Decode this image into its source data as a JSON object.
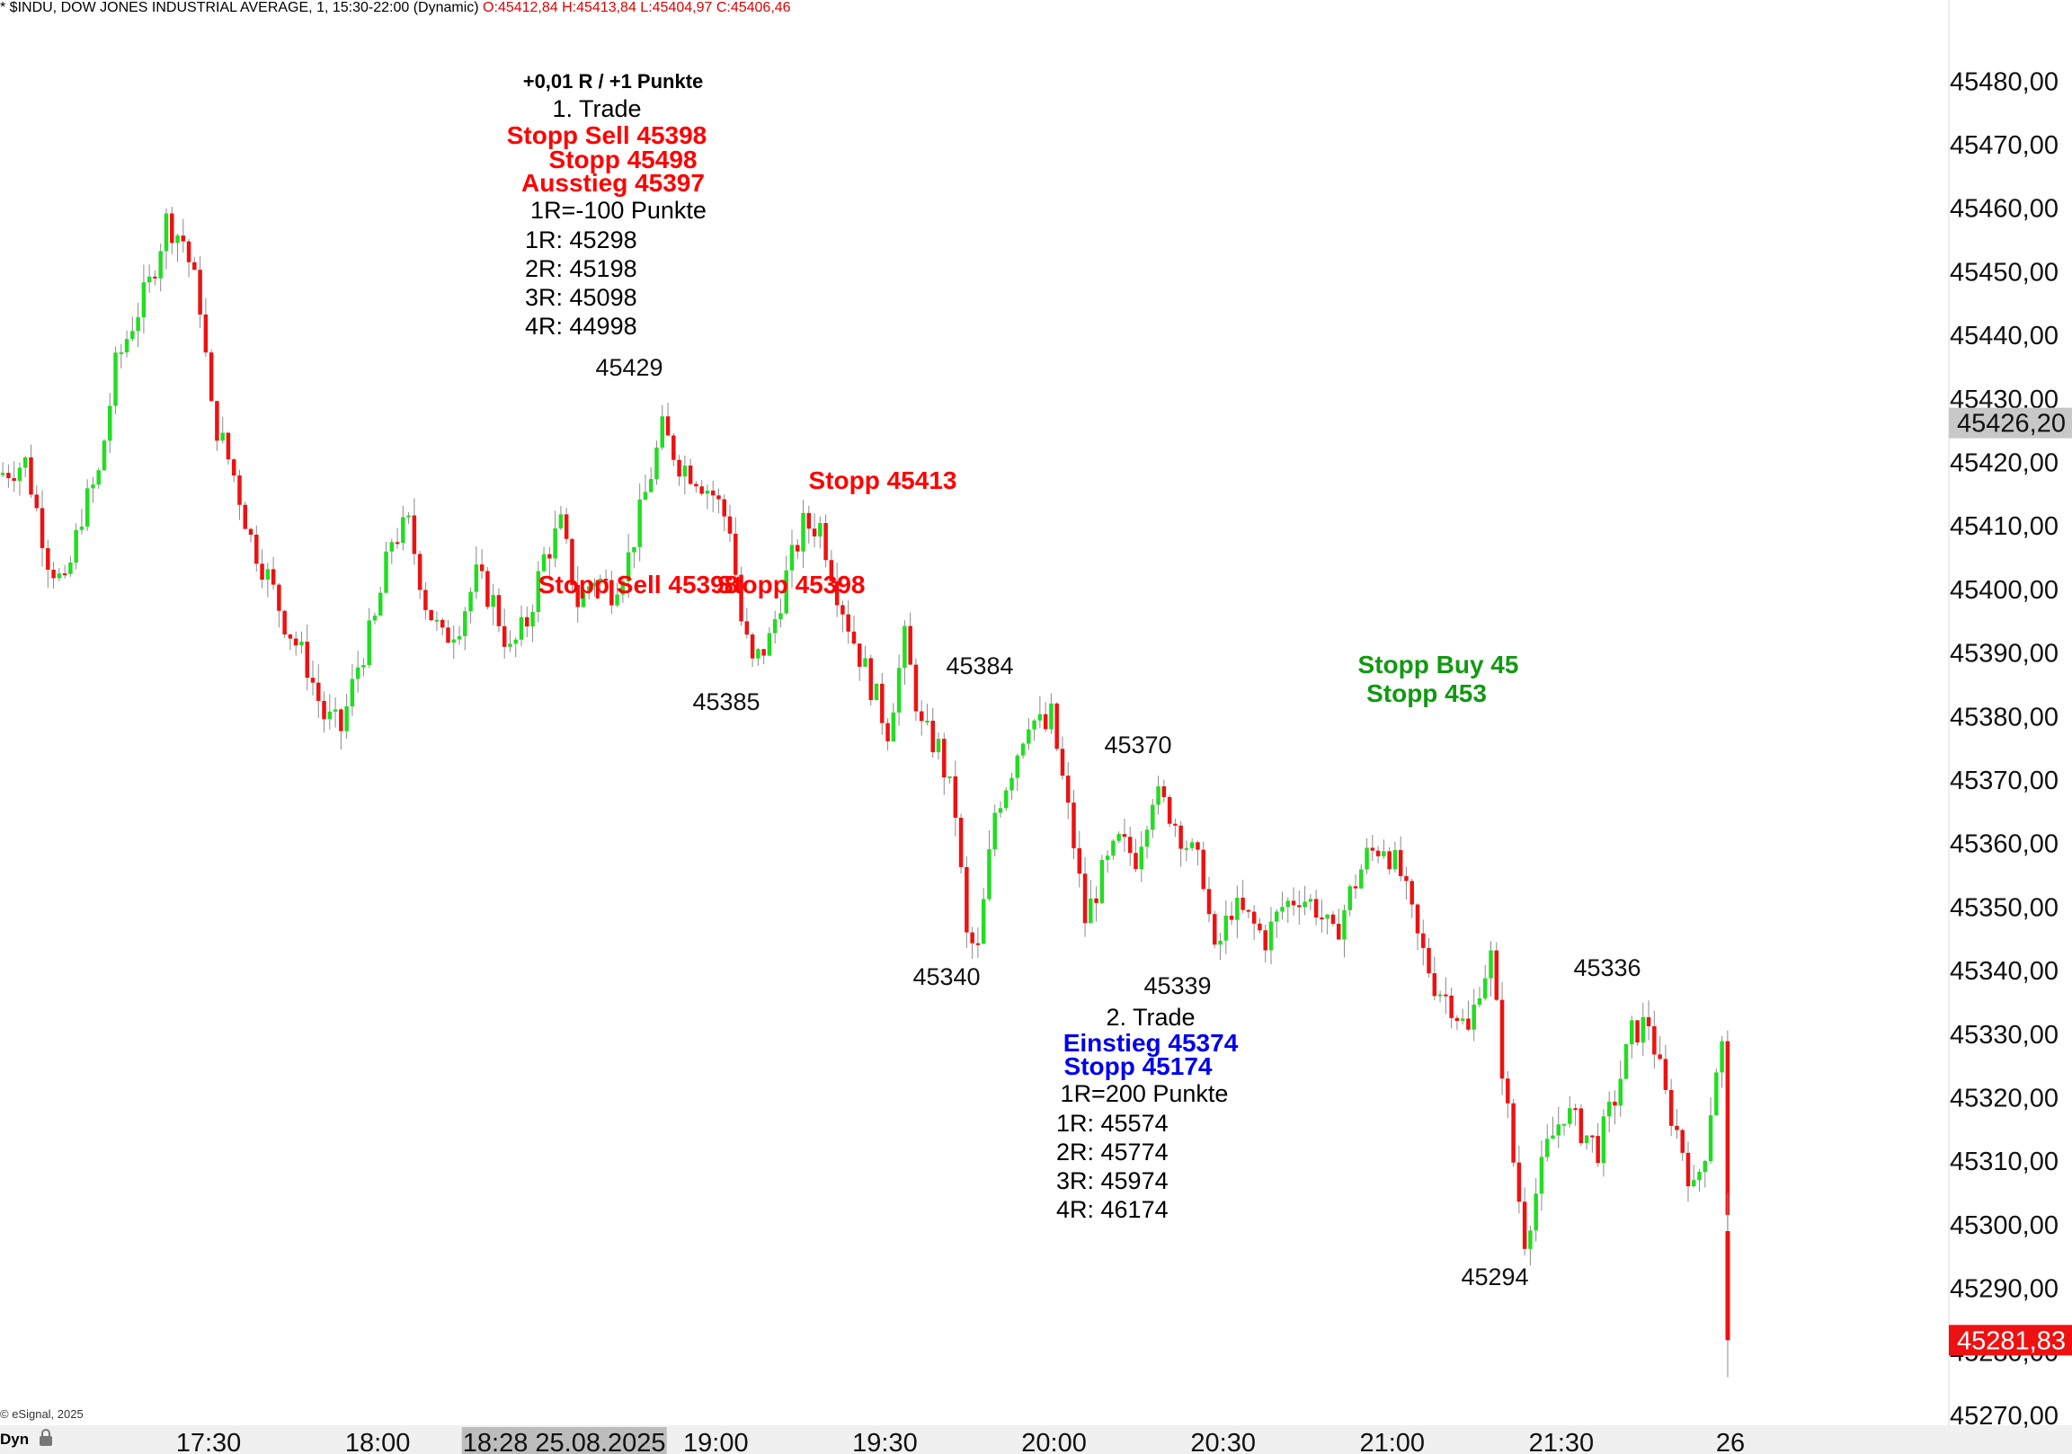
{
  "header": {
    "symbol_text": "* $INDU, DOW JONES INDUSTRIAL AVERAGE, 1, 15:30-22:00 (Dynamic)",
    "ohlc_text": "O:45412,84 H:45413,84 L:45404,97 C:45406,46"
  },
  "footer": {
    "copyright": "© eSignal, 2025",
    "mode": "Dyn",
    "lock_icon": "lock-icon"
  },
  "colors": {
    "up": "#22dd22",
    "down": "#ee1111",
    "wick": "#8a8a8a",
    "red_text": "#ff0000",
    "blue_text": "#0000ee",
    "green_text": "#119911",
    "price_box_gray": "#c8c8c8",
    "price_box_red": "#ee1111"
  },
  "chart_data": {
    "type": "candlestick",
    "title": "",
    "ylim": [
      45270,
      45485
    ],
    "y_ticks": [
      "45270,00",
      "45280,00",
      "45290,00",
      "45300,00",
      "45310,00",
      "45320,00",
      "45330,00",
      "45340,00",
      "45350,00",
      "45360,00",
      "45370,00",
      "45380,00",
      "45390,00",
      "45400,00",
      "45410,00",
      "45420,00",
      "45430,00",
      "45440,00",
      "45450,00",
      "45460,00",
      "45470,00",
      "45480,00"
    ],
    "x_ticks": [
      {
        "label": "17:30",
        "time": "17:30"
      },
      {
        "label": "18:00",
        "time": "18:00"
      },
      {
        "label": "18:28 25.08.2025",
        "time": "18:28",
        "highlight": true
      },
      {
        "label": "19:00",
        "time": "19:00"
      },
      {
        "label": "19:30",
        "time": "19:30"
      },
      {
        "label": "20:00",
        "time": "20:00"
      },
      {
        "label": "20:30",
        "time": "20:30"
      },
      {
        "label": "21:00",
        "time": "21:00"
      },
      {
        "label": "21:30",
        "time": "21:30"
      },
      {
        "label": "26",
        "time": "22:00"
      }
    ],
    "x_start": "16:53",
    "x_end": "22:00",
    "price_markers": [
      {
        "label": "45426,20",
        "value": 45426.2,
        "style": "gray"
      },
      {
        "label": "45281,83",
        "value": 45281.83,
        "style": "red"
      }
    ],
    "path_points": [
      {
        "t": "16:53",
        "p": 45418
      },
      {
        "t": "16:58",
        "p": 45420
      },
      {
        "t": "17:02",
        "p": 45405
      },
      {
        "t": "17:05",
        "p": 45400
      },
      {
        "t": "17:08",
        "p": 45412
      },
      {
        "t": "17:11",
        "p": 45418
      },
      {
        "t": "17:14",
        "p": 45435
      },
      {
        "t": "17:17",
        "p": 45442
      },
      {
        "t": "17:20",
        "p": 45448
      },
      {
        "t": "17:23",
        "p": 45458
      },
      {
        "t": "17:26",
        "p": 45455
      },
      {
        "t": "17:29",
        "p": 45445
      },
      {
        "t": "17:31",
        "p": 45428
      },
      {
        "t": "17:35",
        "p": 45418
      },
      {
        "t": "17:38",
        "p": 45408
      },
      {
        "t": "17:41",
        "p": 45402
      },
      {
        "t": "17:44",
        "p": 45395
      },
      {
        "t": "17:48",
        "p": 45388
      },
      {
        "t": "17:51",
        "p": 45380
      },
      {
        "t": "17:54",
        "p": 45378
      },
      {
        "t": "17:57",
        "p": 45388
      },
      {
        "t": "18:00",
        "p": 45395
      },
      {
        "t": "18:03",
        "p": 45408
      },
      {
        "t": "18:06",
        "p": 45410
      },
      {
        "t": "18:09",
        "p": 45398
      },
      {
        "t": "18:12",
        "p": 45392
      },
      {
        "t": "18:15",
        "p": 45395
      },
      {
        "t": "18:18",
        "p": 45402
      },
      {
        "t": "18:21",
        "p": 45398
      },
      {
        "t": "18:24",
        "p": 45390
      },
      {
        "t": "18:27",
        "p": 45395
      },
      {
        "t": "18:30",
        "p": 45405
      },
      {
        "t": "18:33",
        "p": 45410
      },
      {
        "t": "18:36",
        "p": 45398
      },
      {
        "t": "18:39",
        "p": 45402
      },
      {
        "t": "18:42",
        "p": 45400
      },
      {
        "t": "18:45",
        "p": 45405
      },
      {
        "t": "18:48",
        "p": 45415
      },
      {
        "t": "18:51",
        "p": 45425
      },
      {
        "t": "18:54",
        "p": 45420
      },
      {
        "t": "18:57",
        "p": 45418
      },
      {
        "t": "19:00",
        "p": 45415
      },
      {
        "t": "19:03",
        "p": 45410
      },
      {
        "t": "19:05",
        "p": 45395
      },
      {
        "t": "19:07",
        "p": 45388
      },
      {
        "t": "19:10",
        "p": 45392
      },
      {
        "t": "19:13",
        "p": 45402
      },
      {
        "t": "19:16",
        "p": 45410
      },
      {
        "t": "19:19",
        "p": 45410
      },
      {
        "t": "19:22",
        "p": 45400
      },
      {
        "t": "19:25",
        "p": 45392
      },
      {
        "t": "19:28",
        "p": 45385
      },
      {
        "t": "19:31",
        "p": 45378
      },
      {
        "t": "19:34",
        "p": 45392
      },
      {
        "t": "19:37",
        "p": 45378
      },
      {
        "t": "19:40",
        "p": 45375
      },
      {
        "t": "19:43",
        "p": 45365
      },
      {
        "t": "19:45",
        "p": 45345
      },
      {
        "t": "19:47",
        "p": 45343
      },
      {
        "t": "19:50",
        "p": 45365
      },
      {
        "t": "19:53",
        "p": 45372
      },
      {
        "t": "19:56",
        "p": 45380
      },
      {
        "t": "19:59",
        "p": 45378
      },
      {
        "t": "20:00",
        "p": 45380
      },
      {
        "t": "20:02",
        "p": 45370
      },
      {
        "t": "20:04",
        "p": 45360
      },
      {
        "t": "20:06",
        "p": 45348
      },
      {
        "t": "20:09",
        "p": 45355
      },
      {
        "t": "20:12",
        "p": 45360
      },
      {
        "t": "20:15",
        "p": 45358
      },
      {
        "t": "20:18",
        "p": 45368
      },
      {
        "t": "20:21",
        "p": 45365
      },
      {
        "t": "20:24",
        "p": 45360
      },
      {
        "t": "20:27",
        "p": 45355
      },
      {
        "t": "20:29",
        "p": 45342
      },
      {
        "t": "20:32",
        "p": 45350
      },
      {
        "t": "20:35",
        "p": 45348
      },
      {
        "t": "20:38",
        "p": 45345
      },
      {
        "t": "20:41",
        "p": 45350
      },
      {
        "t": "20:44",
        "p": 45352
      },
      {
        "t": "20:47",
        "p": 45350
      },
      {
        "t": "20:50",
        "p": 45345
      },
      {
        "t": "20:53",
        "p": 45352
      },
      {
        "t": "20:56",
        "p": 45358
      },
      {
        "t": "20:59",
        "p": 45360
      },
      {
        "t": "21:02",
        "p": 45355
      },
      {
        "t": "21:05",
        "p": 45345
      },
      {
        "t": "21:08",
        "p": 45338
      },
      {
        "t": "21:11",
        "p": 45335
      },
      {
        "t": "21:14",
        "p": 45330
      },
      {
        "t": "21:16",
        "p": 45338
      },
      {
        "t": "21:18",
        "p": 45342
      },
      {
        "t": "21:20",
        "p": 45325
      },
      {
        "t": "21:22",
        "p": 45310
      },
      {
        "t": "21:24",
        "p": 45298
      },
      {
        "t": "21:26",
        "p": 45305
      },
      {
        "t": "21:28",
        "p": 45312
      },
      {
        "t": "21:31",
        "p": 45318
      },
      {
        "t": "21:34",
        "p": 45315
      },
      {
        "t": "21:37",
        "p": 45312
      },
      {
        "t": "21:40",
        "p": 45320
      },
      {
        "t": "21:43",
        "p": 45330
      },
      {
        "t": "21:46",
        "p": 45332
      },
      {
        "t": "21:49",
        "p": 45320
      },
      {
        "t": "21:52",
        "p": 45312
      },
      {
        "t": "21:54",
        "p": 45305
      },
      {
        "t": "21:56",
        "p": 45312
      },
      {
        "t": "21:58",
        "p": 45325
      },
      {
        "t": "21:59",
        "p": 45328
      },
      {
        "t": "22:00",
        "p": 45300
      },
      {
        "t": "22:00",
        "p": 45282
      }
    ],
    "swing_labels": [
      {
        "text": "45429",
        "t": "18:55",
        "p": 45429,
        "pos": "above"
      },
      {
        "text": "45385",
        "t": "19:01",
        "p": 45385,
        "pos": "below"
      },
      {
        "text": "45384",
        "t": "19:55",
        "p": 45384,
        "pos": "above"
      },
      {
        "text": "45340",
        "t": "19:47",
        "p": 45340,
        "pos": "below"
      },
      {
        "text": "45370",
        "t": "20:18",
        "p": 45370,
        "pos": "above"
      },
      {
        "text": "45339",
        "t": "20:29",
        "p": 45339,
        "pos": "below"
      },
      {
        "text": "45336",
        "t": "21:43",
        "p": 45336,
        "pos": "above"
      },
      {
        "text": "45294",
        "t": "21:24",
        "p": 45294,
        "pos": "below"
      }
    ]
  },
  "annotations": {
    "trade1": {
      "result": "+0,01 R / +1 Punkte",
      "title": "1. Trade",
      "stop_sell": "Stopp Sell 45398",
      "stop": "Stopp 45498",
      "exit": "Ausstieg 45397",
      "r_def": "1R=-100 Punkte",
      "targets": [
        "1R: 45298",
        "2R: 45198",
        "3R: 45098",
        "4R: 44998"
      ]
    },
    "trade1_chart": {
      "stop_413": "Stopp 45413",
      "stop_sell_overlap": "Stopp Sell 45398",
      "stop_overlap": "Stopp 45398"
    },
    "trade2": {
      "title": "2. Trade",
      "entry": "Einstieg 45374",
      "stop": "Stopp 45174",
      "r_def": "1R=200 Punkte",
      "targets": [
        "1R: 45574",
        "2R: 45774",
        "3R: 45974",
        "4R: 46174"
      ]
    },
    "green_orders": {
      "stop_buy": "Stopp Buy 45",
      "stop": "Stopp 453"
    }
  }
}
